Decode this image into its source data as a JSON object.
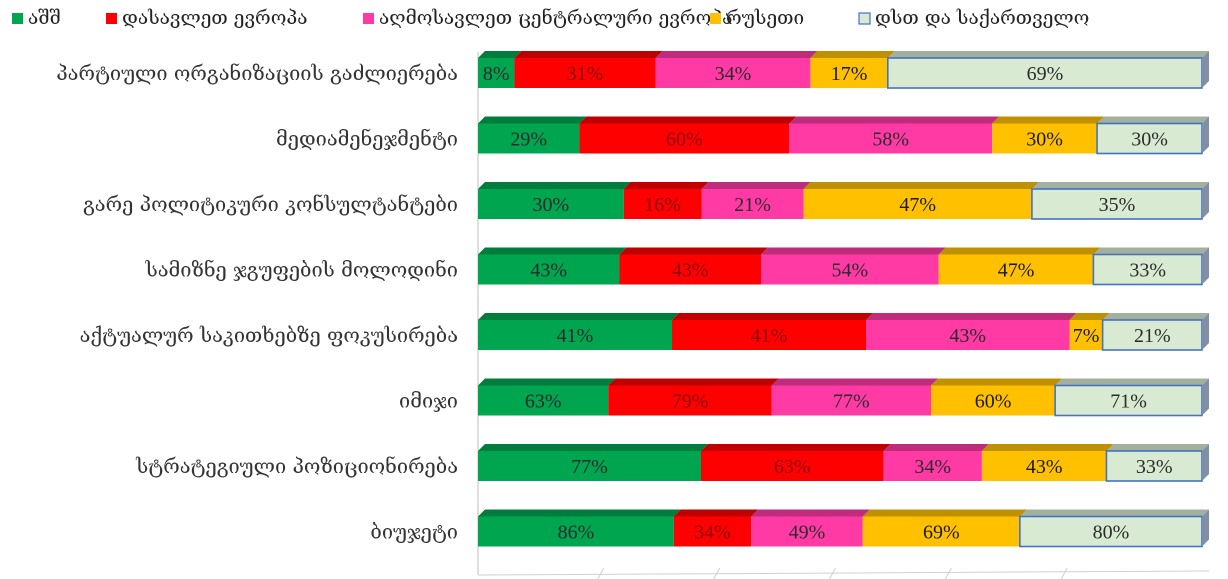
{
  "chart_data": {
    "type": "bar",
    "orientation": "horizontal",
    "stacked": "100%",
    "legend_position": "top",
    "grid": false,
    "categories": [
      "პარტიული ორგანიზაციის გაძლიერება",
      "მედიამენეჯმენტი",
      "გარე პოლიტიკური კონსულტანტები",
      "სამიზნე ჯგუფების მოლოდინი",
      "აქტუალურ საკითხებზე ფოკუსირება",
      "იმიჯი",
      "სტრატეგიული პოზიციონირება",
      "ბიუჯეტი"
    ],
    "series": [
      {
        "name": "აშშ",
        "color": "#00a550",
        "values": [
          8,
          29,
          30,
          43,
          41,
          63,
          77,
          86
        ],
        "labels": [
          "8%",
          "29%",
          "30%",
          "43%",
          "41%",
          "63%",
          "77%",
          "86%"
        ]
      },
      {
        "name": "დასავლეთ ევროპა",
        "color": "#ff0000",
        "values": [
          31,
          60,
          16,
          43,
          41,
          79,
          63,
          34
        ],
        "labels": [
          "31%",
          "60%",
          "16%",
          "43%",
          "41%",
          "79%",
          "63%",
          "34%"
        ]
      },
      {
        "name": "აღმოსავლეთ ცენტრალური ევროპა",
        "color": "#ff3aa5",
        "values": [
          34,
          58,
          21,
          54,
          43,
          77,
          34,
          49
        ],
        "labels": [
          "34%",
          "58%",
          "21%",
          "54%",
          "43%",
          "77%",
          "34%",
          "49%"
        ]
      },
      {
        "name": "რუსეთი",
        "color": "#ffc000",
        "values": [
          17,
          30,
          47,
          47,
          7,
          60,
          43,
          69
        ],
        "labels": [
          "17%",
          "30%",
          "47%",
          "47%",
          "7%",
          "60%",
          "43%",
          "69%"
        ]
      },
      {
        "name": "დსთ და საქართველო",
        "color": "#d9ead3",
        "values": [
          69,
          30,
          35,
          33,
          21,
          71,
          33,
          80
        ],
        "labels": [
          "69%",
          "30%",
          "35%",
          "33%",
          "21%",
          "71%",
          "33%",
          "80%"
        ]
      }
    ]
  }
}
